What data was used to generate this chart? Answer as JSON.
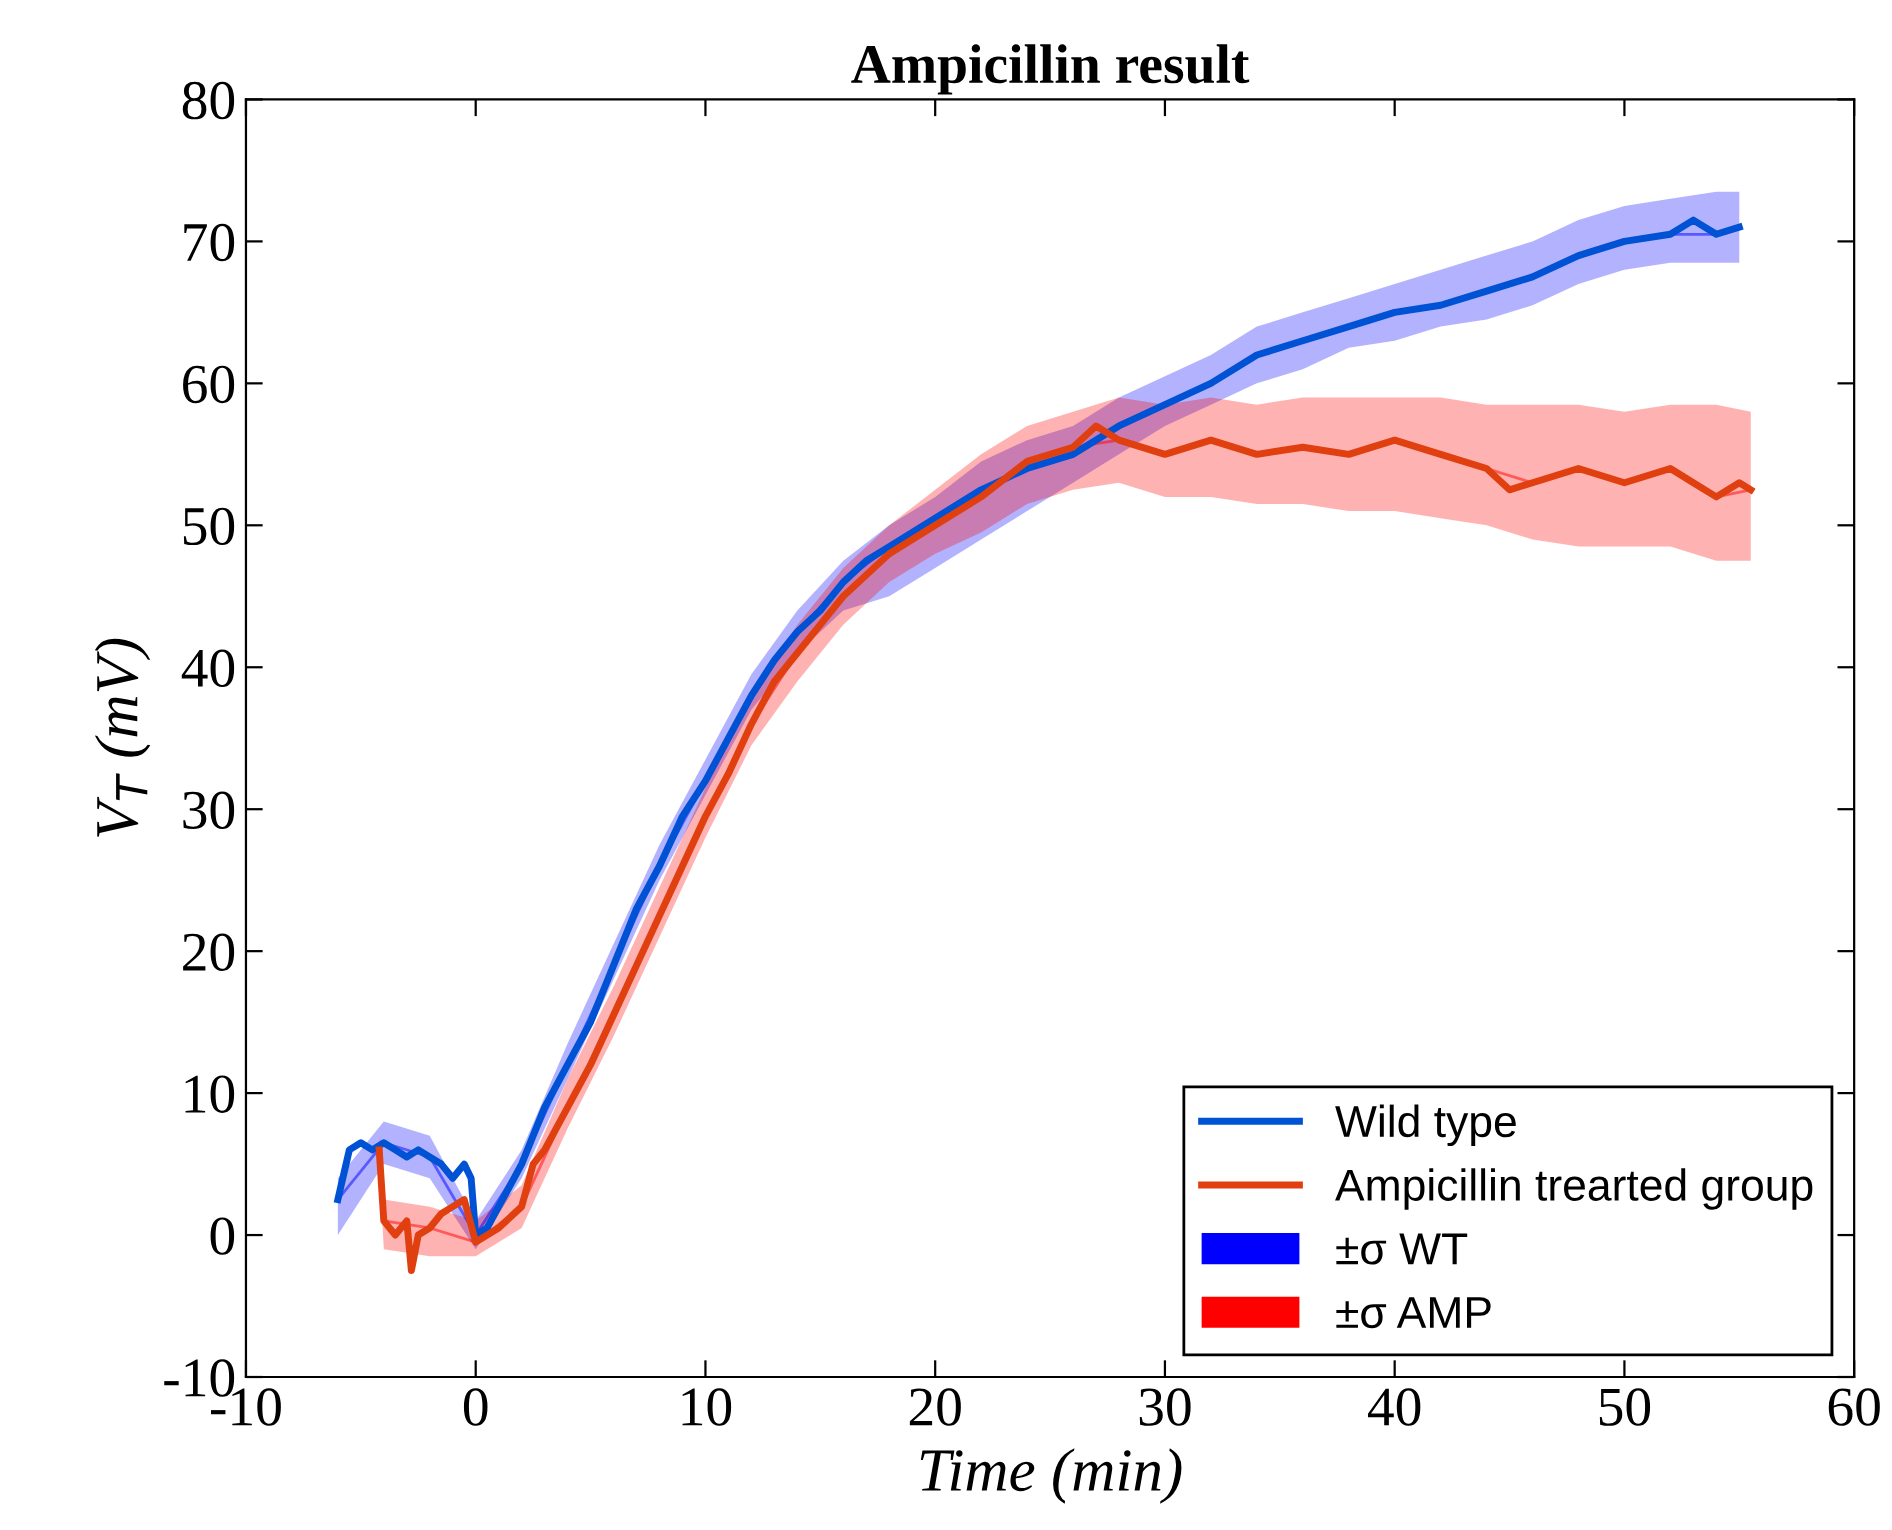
{
  "chart_data": {
    "type": "line",
    "title": "Ampicillin result",
    "xlabel": "Time (min)",
    "ylabel": "V$_{T}$ (mV)",
    "xlim": [
      -10,
      60
    ],
    "ylim": [
      -10,
      80
    ],
    "xticks": [
      -10,
      0,
      10,
      20,
      30,
      40,
      50,
      60
    ],
    "yticks": [
      -10,
      0,
      10,
      20,
      30,
      40,
      50,
      60,
      70,
      80
    ],
    "grid": false,
    "legend": "bottom right",
    "series": [
      {
        "name": "Wild type",
        "color": "#0052d4",
        "x": [
          -6,
          -5.5,
          -5,
          -4.5,
          -4,
          -3.5,
          -3,
          -2.5,
          -2,
          -1.5,
          -1,
          -0.5,
          -0.2,
          0,
          0.5,
          1,
          2,
          3,
          4,
          5,
          6,
          7,
          8,
          9,
          10,
          11,
          12,
          13,
          14,
          15,
          16,
          17,
          18,
          19,
          20,
          22,
          24,
          26,
          28,
          30,
          32,
          34,
          36,
          38,
          40,
          42,
          44,
          46,
          48,
          50,
          52,
          53,
          54,
          55
        ],
        "values": [
          2.5,
          6,
          6.5,
          6,
          6.5,
          6,
          5.5,
          6,
          5.5,
          5,
          4,
          5,
          4,
          0,
          0.5,
          2,
          5,
          9,
          12,
          15,
          19,
          23,
          26,
          29.5,
          32,
          35,
          38,
          40.5,
          42.5,
          44,
          46,
          47.5,
          48.5,
          49.5,
          50.5,
          52.5,
          54,
          55,
          57,
          58.5,
          60,
          62,
          63,
          64,
          65,
          65.5,
          66.5,
          67.5,
          69,
          70,
          70.5,
          71.5,
          70.5,
          71
        ]
      },
      {
        "name": "Ampicillin trearted group",
        "color": "#e0400f",
        "x": [
          -4.2,
          -4,
          -3.5,
          -3,
          -2.8,
          -2.5,
          -2,
          -1.5,
          -1,
          -0.5,
          0,
          1,
          2,
          2.5,
          3,
          4,
          5,
          6,
          7,
          8,
          9,
          10,
          11,
          12,
          13,
          14,
          15,
          16,
          17,
          18,
          20,
          22,
          24,
          26,
          27,
          28,
          30,
          32,
          34,
          36,
          38,
          40,
          42,
          44,
          45,
          46,
          48,
          50,
          52,
          53,
          54,
          55,
          55.5
        ],
        "values": [
          6,
          1,
          0,
          1,
          -2.5,
          0,
          0.5,
          1.5,
          2,
          2.5,
          -0.5,
          0.5,
          2,
          5,
          6,
          9,
          12,
          15.5,
          19,
          22.5,
          26,
          29.5,
          32.5,
          36,
          39,
          41,
          43,
          45,
          46.5,
          48,
          50,
          52,
          54.5,
          55.5,
          57,
          56,
          55,
          56,
          55,
          55.5,
          55,
          56,
          55,
          54,
          52.5,
          53,
          54,
          53,
          54,
          53,
          52,
          53,
          52.5
        ]
      },
      {
        "name": "±σ WT",
        "type": "line",
        "color": "#0000ff",
        "x": [
          -6,
          -4,
          -2,
          0,
          2,
          4,
          6,
          8,
          10,
          12,
          14,
          16,
          18,
          20,
          22,
          24,
          26,
          28,
          30,
          32,
          34,
          36,
          38,
          40,
          42,
          44,
          46,
          48,
          50,
          52,
          54,
          55
        ],
        "values": [
          2.5,
          6.5,
          5.5,
          0,
          5,
          12,
          19,
          26,
          32,
          38,
          42.5,
          46,
          48.5,
          50.5,
          52.5,
          54,
          55,
          57,
          58.5,
          60,
          62,
          63,
          64,
          65,
          65.5,
          66.5,
          67.5,
          69,
          70,
          70.5,
          70.5,
          71
        ],
        "lower": [
          0,
          5,
          4,
          -1,
          4,
          11,
          18,
          25,
          31,
          37,
          41,
          44,
          45,
          47,
          49,
          51,
          53,
          55,
          57,
          58.5,
          60,
          61,
          62.5,
          63,
          64,
          64.5,
          65.5,
          67,
          68,
          68.5,
          68.5,
          68.5
        ],
        "upper": [
          4,
          8,
          7,
          1,
          6,
          13.5,
          20.5,
          27.5,
          33.5,
          39.5,
          44,
          47.5,
          50,
          52,
          54.5,
          56,
          57,
          59,
          60.5,
          62,
          64,
          65,
          66,
          67,
          68,
          69,
          70,
          71.5,
          72.5,
          73,
          73.5,
          73.5
        ]
      },
      {
        "name": "±σ AMP",
        "type": "line",
        "color": "#ff0000",
        "x": [
          -4.2,
          -4,
          -2,
          0,
          2,
          4,
          6,
          8,
          10,
          12,
          14,
          16,
          18,
          20,
          22,
          24,
          26,
          28,
          30,
          32,
          34,
          36,
          38,
          40,
          42,
          44,
          46,
          48,
          50,
          52,
          54,
          55.5
        ],
        "values": [
          6,
          1,
          0.5,
          -0.5,
          2,
          9,
          15.5,
          22.5,
          29.5,
          36,
          41,
          45,
          48,
          50,
          52,
          54.5,
          55.5,
          56,
          55,
          56,
          55,
          55.5,
          55,
          56,
          55,
          54,
          53,
          54,
          53,
          54,
          52,
          52.5
        ],
        "lower": [
          5,
          -1,
          -1.5,
          -1.5,
          0.5,
          7.5,
          14,
          21,
          28,
          34.5,
          39,
          43,
          46,
          48,
          49.5,
          51.5,
          52.5,
          53,
          52,
          52,
          51.5,
          51.5,
          51,
          51,
          50.5,
          50,
          49,
          48.5,
          48.5,
          48.5,
          47.5,
          47.5
        ],
        "upper": [
          7,
          2.5,
          2,
          1,
          3.5,
          11,
          17.5,
          24.5,
          31.5,
          38,
          43,
          47,
          50,
          52.5,
          55,
          57,
          58,
          59,
          58.5,
          59,
          58.5,
          59,
          59,
          59,
          59,
          58.5,
          58.5,
          58.5,
          58,
          58.5,
          58.5,
          58
        ]
      }
    ]
  }
}
